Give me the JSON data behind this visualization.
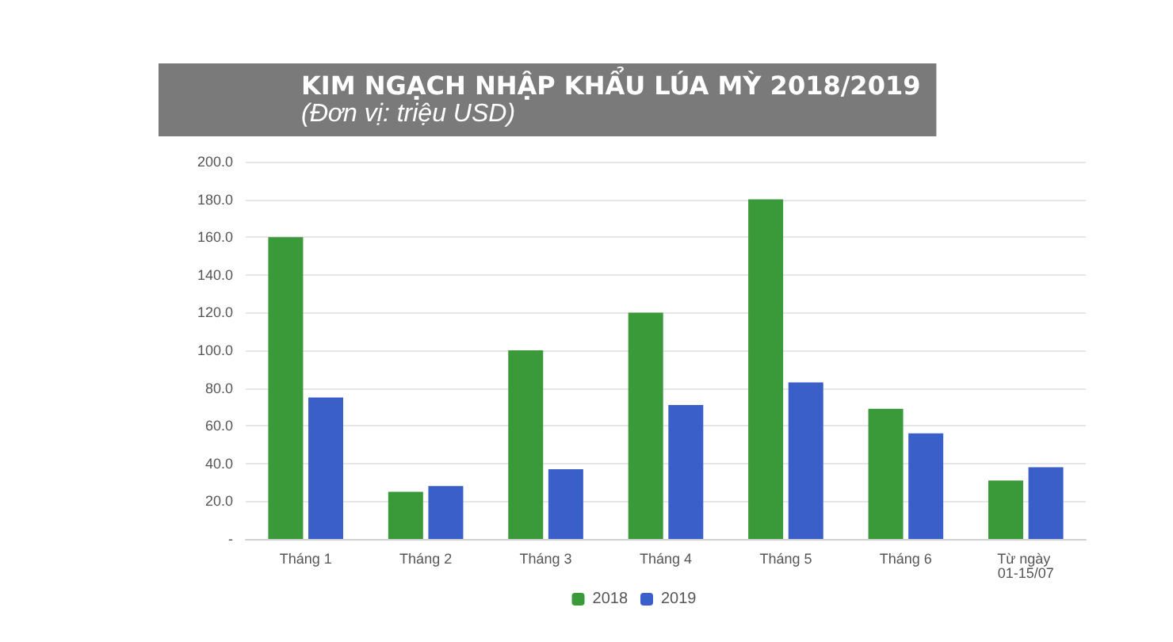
{
  "chart_data": {
    "type": "bar",
    "title": "KIM NGẠCH NHẬP KHẨU LÚA MỲ 2018/2019",
    "subtitle": "(Đơn vị: triệu USD)",
    "categories": [
      "Tháng 1",
      "Tháng 2",
      "Tháng 3",
      "Tháng 4",
      "Tháng 5",
      "Tháng 6",
      "Từ ngày 01-15/07"
    ],
    "series": [
      {
        "name": "2018",
        "color": "#3a9a3a",
        "values": [
          160,
          25,
          100,
          120,
          180,
          69,
          31
        ]
      },
      {
        "name": "2019",
        "color": "#3a5fc8",
        "values": [
          75,
          28,
          37,
          71,
          83,
          56,
          38
        ]
      }
    ],
    "ylim": [
      0,
      200
    ],
    "yticks": [
      {
        "value": 0,
        "label": "-"
      },
      {
        "value": 20,
        "label": "20.0"
      },
      {
        "value": 40,
        "label": "40.0"
      },
      {
        "value": 60,
        "label": "60.0"
      },
      {
        "value": 80,
        "label": "80.0"
      },
      {
        "value": 100,
        "label": "100.0"
      },
      {
        "value": 120,
        "label": "120.0"
      },
      {
        "value": 140,
        "label": "140.0"
      },
      {
        "value": 160,
        "label": "160.0"
      },
      {
        "value": 180,
        "label": "180.0"
      },
      {
        "value": 200,
        "label": "200.0"
      }
    ],
    "grid": true,
    "legend": "bottom"
  }
}
